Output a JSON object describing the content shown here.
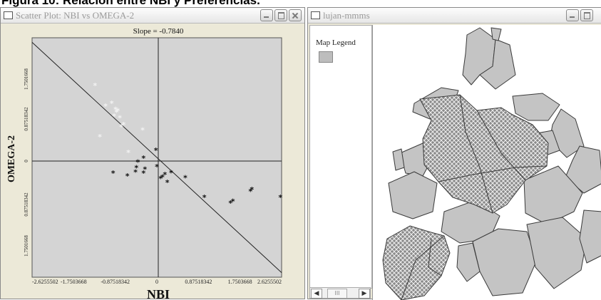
{
  "caption": "Figura 10: Relación entre NBI y Preferencias.",
  "scatter_window": {
    "title": "Scatter Plot: NBI vs OMEGA-2",
    "slope_label": "Slope = -0.7840",
    "x_axis_label": "NBI",
    "y_axis_label": "OMEGA-2",
    "x_tick_labels": [
      "-2.6255502",
      "-1.7503668",
      "-0.87518342",
      "0",
      "0.87518342",
      "1.7503668",
      "2.6255502"
    ],
    "y_tick_labels": [
      "1.7501668",
      "0.87518342",
      "0",
      "0.87518342",
      "1.7501668"
    ]
  },
  "map_window": {
    "title": "lujan-mmms",
    "legend_title": "Map Legend"
  },
  "colors": {
    "window_bg": "#ece9d8",
    "plot_bg": "#d4d4d4",
    "map_fill": "#c4c4c4",
    "map_stroke": "#3a3a3a"
  },
  "chart_data": {
    "type": "scatter",
    "title": "Slope = -0.7840",
    "xlabel": "NBI",
    "ylabel": "OMEGA-2",
    "xlim": [
      -2.6255502,
      2.6255502
    ],
    "ylim": [
      -2.14,
      2.14
    ],
    "regression_slope": -0.784,
    "series": [
      {
        "name": "",
        "color": "#f2f2f2",
        "points": [
          [
            -1.3,
            1.3
          ],
          [
            -1.08,
            0.93
          ],
          [
            -0.95,
            0.98
          ],
          [
            -0.87,
            0.87
          ],
          [
            -0.85,
            0.82
          ],
          [
            -0.82,
            0.85
          ],
          [
            -0.78,
            0.72
          ],
          [
            -0.9,
            0.75
          ],
          [
            -0.7,
            0.6
          ],
          [
            -0.75,
            0.56
          ],
          [
            -1.2,
            0.38
          ],
          [
            -0.3,
            0.5
          ],
          [
            -0.6,
            0.1
          ]
        ]
      },
      {
        "name": "",
        "color": "#111111",
        "points": [
          [
            -0.92,
            -0.27
          ],
          [
            -0.62,
            -0.32
          ],
          [
            -0.45,
            -0.25
          ],
          [
            -0.43,
            -0.17
          ],
          [
            -0.4,
            -0.07
          ],
          [
            -0.28,
            0.0
          ],
          [
            -0.25,
            -0.2
          ],
          [
            -0.28,
            -0.27
          ],
          [
            -0.02,
            0.14
          ],
          [
            0.0,
            -0.15
          ],
          [
            0.08,
            -0.36
          ],
          [
            0.12,
            -0.34
          ],
          [
            0.17,
            -0.29
          ],
          [
            0.22,
            -0.43
          ],
          [
            0.3,
            -0.26
          ],
          [
            0.6,
            -0.35
          ],
          [
            1.0,
            -0.7
          ],
          [
            1.55,
            -0.8
          ],
          [
            1.6,
            -0.77
          ],
          [
            1.97,
            -0.59
          ],
          [
            2.0,
            -0.56
          ],
          [
            2.6,
            -0.7
          ]
        ]
      }
    ]
  }
}
